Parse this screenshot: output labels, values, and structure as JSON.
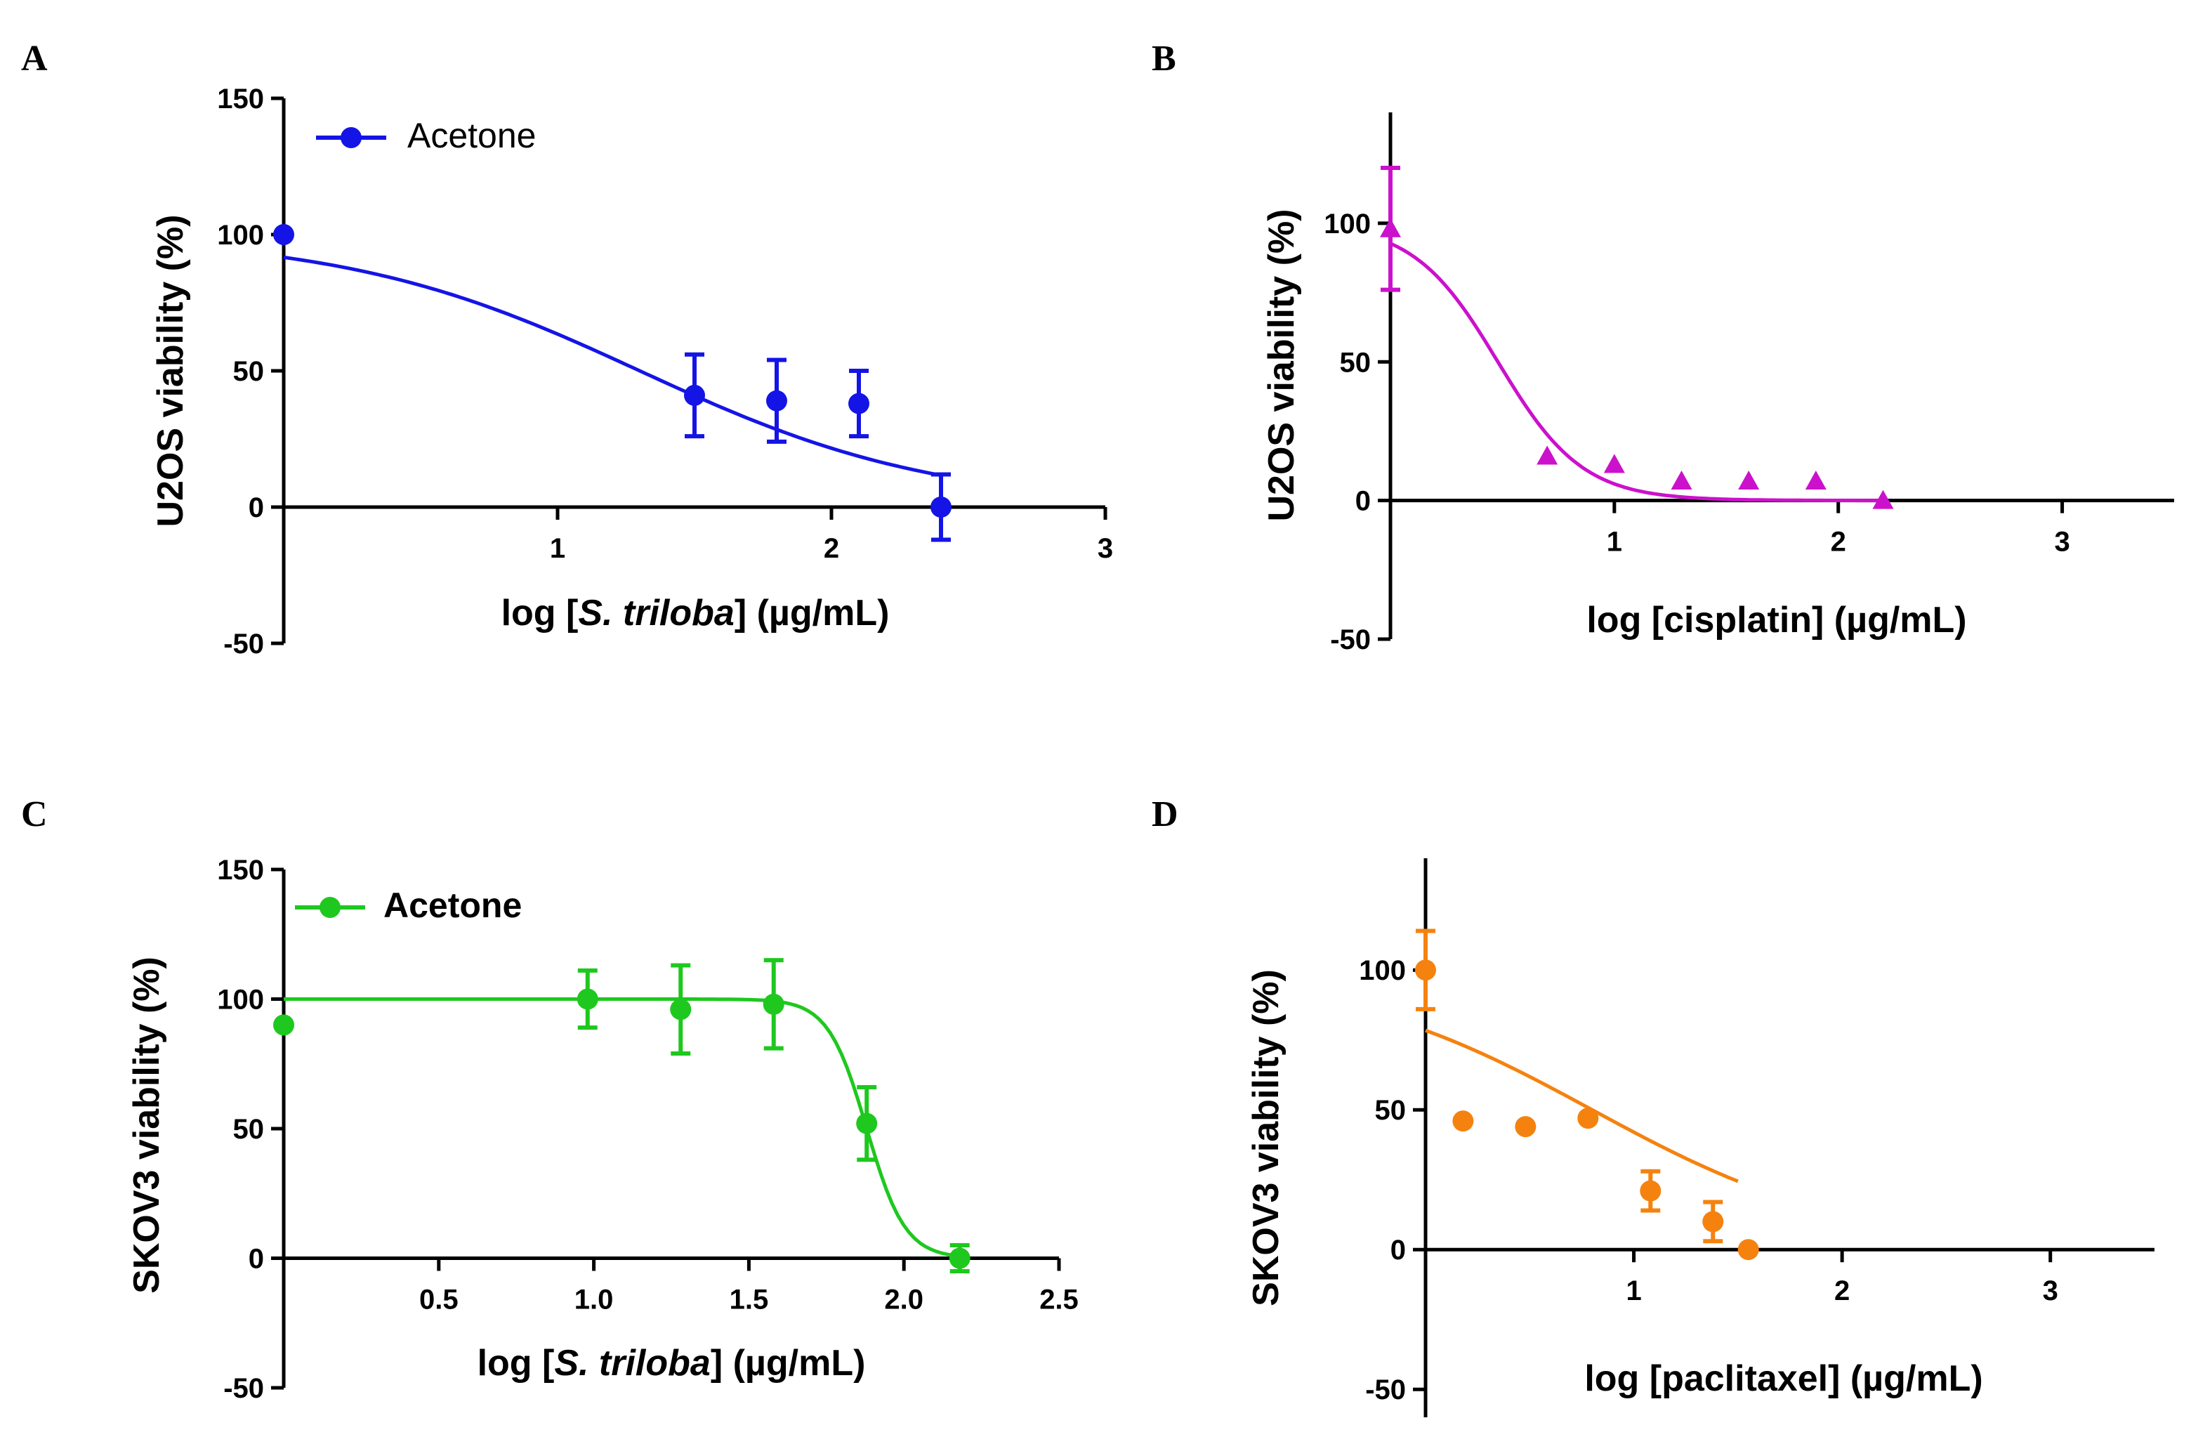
{
  "chart_data": [
    {
      "panel": "A",
      "type": "scatter",
      "color": "#1414e6",
      "marker": "circle",
      "legend": "Acetone",
      "xlabel_prefix": "log [",
      "xlabel_italic": "S. triloba",
      "xlabel_suffix": "] (µg/mL)",
      "ylabel": "U2OS viability (%)",
      "xlim": [
        0,
        3
      ],
      "ylim": [
        -50,
        150
      ],
      "xticks": [
        "1",
        "2",
        "3"
      ],
      "yticks": [
        "-50",
        "0",
        "50",
        "100",
        "150"
      ],
      "x": [
        0,
        1.5,
        1.8,
        2.1,
        2.4
      ],
      "y": [
        100,
        41,
        39,
        38,
        0
      ],
      "err": [
        0,
        15,
        15,
        12,
        12
      ],
      "fit": {
        "top": 100,
        "bottom": 0,
        "logIC50": 1.3,
        "hill": -0.8,
        "xmin": 0,
        "xmax": 2.4
      }
    },
    {
      "panel": "B",
      "type": "scatter",
      "color": "#cc11cc",
      "marker": "triangle",
      "legend": "",
      "xlabel_prefix": "log [cisplatin] (µg/mL)",
      "xlabel_italic": "",
      "xlabel_suffix": "",
      "ylabel": "U2OS viability (%)",
      "xlim": [
        0,
        3.5
      ],
      "ylim": [
        -50,
        140
      ],
      "xticks": [
        "1",
        "2",
        "3"
      ],
      "yticks": [
        "-50",
        "0",
        "50",
        "100"
      ],
      "x": [
        0,
        0.7,
        1.0,
        1.3,
        1.6,
        1.9,
        2.2
      ],
      "y": [
        98,
        16,
        13,
        7,
        7,
        7,
        0
      ],
      "err": [
        22,
        0,
        0,
        0,
        0,
        0,
        0
      ],
      "fit": {
        "top": 100,
        "bottom": 0,
        "logIC50": 0.48,
        "hill": -2.3,
        "xmin": 0,
        "xmax": 2.2
      }
    },
    {
      "panel": "C",
      "type": "scatter",
      "color": "#1ec81e",
      "marker": "circle",
      "legend": "Acetone",
      "xlabel_prefix": "log [",
      "xlabel_italic": "S. triloba",
      "xlabel_suffix": "] (µg/mL)",
      "ylabel": "SKOV3 viability (%)",
      "xlim": [
        0,
        2.5
      ],
      "ylim": [
        -50,
        150
      ],
      "xticks": [
        "0.5",
        "1.0",
        "1.5",
        "2.0",
        "2.5"
      ],
      "yticks": [
        "-50",
        "0",
        "50",
        "100",
        "150"
      ],
      "x": [
        0,
        0.98,
        1.28,
        1.58,
        1.88,
        2.18
      ],
      "y": [
        90,
        100,
        96,
        98,
        52,
        0
      ],
      "err": [
        0,
        11,
        17,
        17,
        14,
        5
      ],
      "fit": {
        "top": 100,
        "bottom": 0,
        "logIC50": 1.88,
        "hill": -7,
        "xmin": 0,
        "xmax": 2.18
      }
    },
    {
      "panel": "D",
      "type": "scatter",
      "color": "#f5820f",
      "marker": "circle",
      "legend": "",
      "xlabel_prefix": "log [paclitaxel] (µg/mL)",
      "xlabel_italic": "",
      "xlabel_suffix": "",
      "ylabel": "SKOV3 viability (%)",
      "xlim": [
        0,
        3.5
      ],
      "ylim": [
        -60,
        140
      ],
      "xticks": [
        "1",
        "2",
        "3"
      ],
      "yticks": [
        "-50",
        "0",
        "50",
        "100"
      ],
      "x": [
        0,
        0.18,
        0.48,
        0.78,
        1.08,
        1.38,
        1.55
      ],
      "y": [
        100,
        46,
        44,
        47,
        21,
        10,
        0
      ],
      "err": [
        14,
        0,
        0,
        0,
        7,
        7,
        0
      ],
      "fit": {
        "top": 100,
        "bottom": 0,
        "logIC50": 0.8,
        "hill": -0.7,
        "xmin": 0,
        "xmax": 1.5
      }
    }
  ]
}
